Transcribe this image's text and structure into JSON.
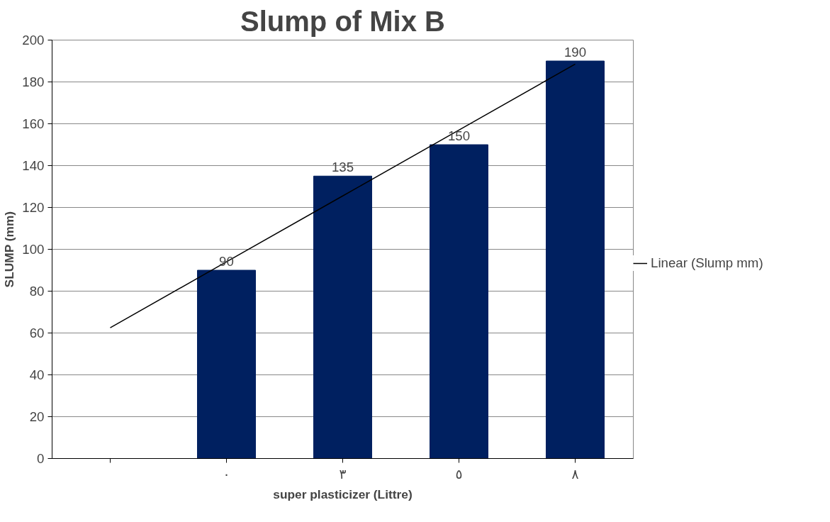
{
  "chart_data": {
    "type": "bar",
    "title": "Slump of Mix B",
    "xlabel": "super plasticizer (Littre)",
    "ylabel": "SLUMP (mm)",
    "categories": [
      null,
      "٠",
      "٣",
      "٥",
      "٨"
    ],
    "series": [
      {
        "color": "#002060",
        "values": [
          null,
          90,
          135,
          150,
          190
        ],
        "value_labels": [
          null,
          "90",
          "135",
          "150",
          "190"
        ]
      },
      {
        "type": "line",
        "name": "Linear (Slump mm)",
        "color": "#000000",
        "values": [
          62.5,
          94,
          125.5,
          157,
          188.5
        ]
      }
    ],
    "ylim": [
      0,
      200
    ],
    "yticks": [
      0,
      20,
      40,
      60,
      80,
      100,
      120,
      140,
      160,
      180,
      200
    ],
    "grid": "y",
    "legend": "right"
  }
}
